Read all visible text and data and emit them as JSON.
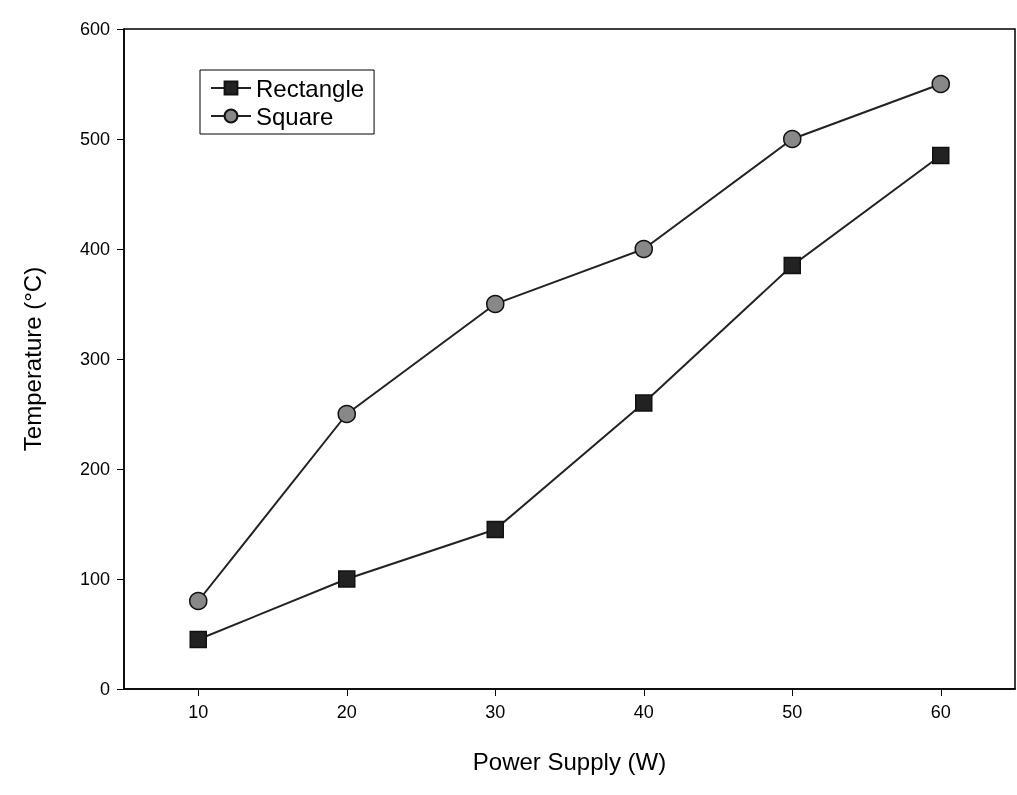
{
  "chart_data": {
    "type": "line",
    "xlabel": "Power Supply (W)",
    "ylabel": "Temperature (°C)",
    "x": [
      10,
      20,
      30,
      40,
      50,
      60
    ],
    "series": [
      {
        "name": "Rectangle",
        "color": "#222222",
        "marker": "square",
        "values": [
          45,
          100,
          145,
          260,
          385,
          485
        ]
      },
      {
        "name": "Square",
        "color": "#888888",
        "marker": "circle",
        "values": [
          80,
          250,
          350,
          400,
          500,
          550
        ]
      }
    ],
    "xlim": [
      5,
      65
    ],
    "xticks": [
      10,
      20,
      30,
      40,
      50,
      60
    ],
    "ylim": [
      0,
      600
    ],
    "yticks": [
      0,
      100,
      200,
      300,
      400,
      500,
      600
    ],
    "grid": false,
    "legend": "top left"
  }
}
